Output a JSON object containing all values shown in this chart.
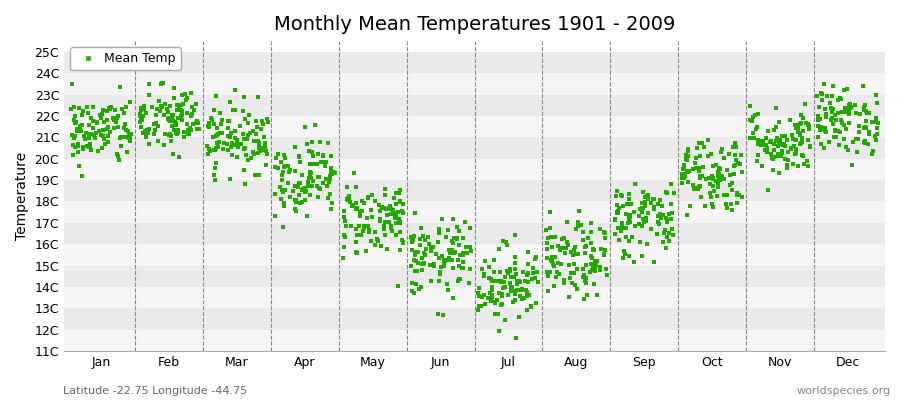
{
  "title": "Monthly Mean Temperatures 1901 - 2009",
  "ylabel": "Temperature",
  "months": [
    "Jan",
    "Feb",
    "Mar",
    "Apr",
    "May",
    "Jun",
    "Jul",
    "Aug",
    "Sep",
    "Oct",
    "Nov",
    "Dec"
  ],
  "month_means": [
    21.3,
    21.8,
    21.0,
    19.2,
    17.2,
    15.3,
    14.2,
    15.2,
    17.2,
    19.3,
    20.8,
    21.8
  ],
  "month_stds": [
    0.8,
    0.8,
    0.8,
    0.9,
    0.9,
    0.9,
    0.9,
    0.9,
    0.9,
    0.9,
    0.8,
    0.8
  ],
  "ylim": [
    11,
    25.5
  ],
  "ytick_labels": [
    "11C",
    "12C",
    "13C",
    "14C",
    "15C",
    "16C",
    "17C",
    "18C",
    "19C",
    "20C",
    "21C",
    "22C",
    "23C",
    "24C",
    "25C"
  ],
  "ytick_values": [
    11,
    12,
    13,
    14,
    15,
    16,
    17,
    18,
    19,
    20,
    21,
    22,
    23,
    24,
    25
  ],
  "n_years": 109,
  "dot_color": "#22aa00",
  "bg_color": "#ffffff",
  "band_colors": [
    "#f5f5f5",
    "#eaeaea"
  ],
  "marker": "s",
  "marker_size": 2.5,
  "legend_label": "Mean Temp",
  "subtitle_left": "Latitude -22.75 Longitude -44.75",
  "subtitle_right": "worldspecies.org",
  "title_fontsize": 14,
  "axis_fontsize": 10,
  "tick_fontsize": 9
}
